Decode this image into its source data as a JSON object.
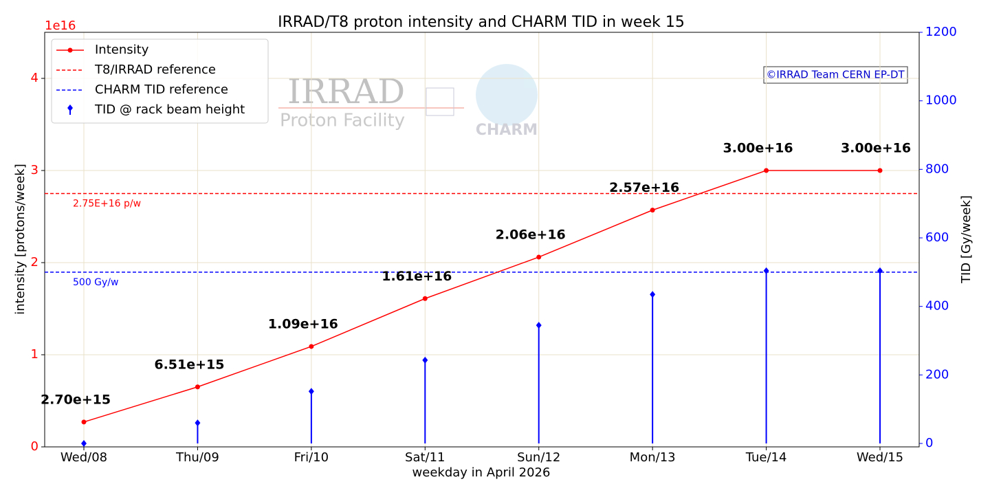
{
  "chart_data": {
    "type": "line",
    "title": "IRRAD/T8 proton intensity and CHARM TID in week 15",
    "x_label": "weekday in April 2026",
    "y_label": "intensity [protons/week]",
    "y2_label": "TID [Gy/week]",
    "y_offset_label": "1e16",
    "categories": [
      "Wed/08",
      "Thu/09",
      "Fri/10",
      "Sat/11",
      "Sun/12",
      "Mon/13",
      "Tue/14",
      "Wed/15"
    ],
    "series": [
      {
        "name": "Intensity",
        "color": "#ff0000",
        "values": [
          2700000000000000.0,
          6510000000000000.0,
          1.09e+16,
          1.61e+16,
          2.06e+16,
          2.57e+16,
          3e+16,
          3e+16
        ],
        "value_labels": [
          "2.70e+15",
          "6.51e+15",
          "1.09e+16",
          "1.61e+16",
          "2.06e+16",
          "2.57e+16",
          "3.00e+16",
          "3.00e+16"
        ]
      },
      {
        "name": "TID @ rack beam height",
        "color": "#0000ff",
        "axis": "y2",
        "style": "stem",
        "values": [
          0,
          60,
          152,
          243,
          345,
          435,
          504,
          504
        ]
      }
    ],
    "reference_lines": [
      {
        "name": "T8/IRRAD reference",
        "value": 2.75e+16,
        "label": "2.75E+16 p/w",
        "color": "#ff0000"
      },
      {
        "name": "CHARM TID reference",
        "value": 500,
        "axis": "y2",
        "label": "500 Gy/w",
        "color": "#0000ff"
      }
    ],
    "ylim": [
      0,
      4.5e+16
    ],
    "yticks": [
      0,
      {
        "value": 1e+16,
        "label": "1"
      },
      {
        "value": 2e+16,
        "label": "2"
      },
      {
        "value": 3e+16,
        "label": "3"
      },
      {
        "value": 4e+16,
        "label": "4"
      }
    ],
    "y2lim": [
      -10,
      1200
    ],
    "y2ticks": [
      0,
      200,
      400,
      600,
      800,
      1000,
      1200
    ],
    "grid": true,
    "legend": "upper left",
    "watermark": {
      "title": "IRRAD",
      "subtitle": "Proton Facility",
      "logo": "CHARM"
    },
    "copyright": "©IRRAD Team CERN EP-DT"
  }
}
